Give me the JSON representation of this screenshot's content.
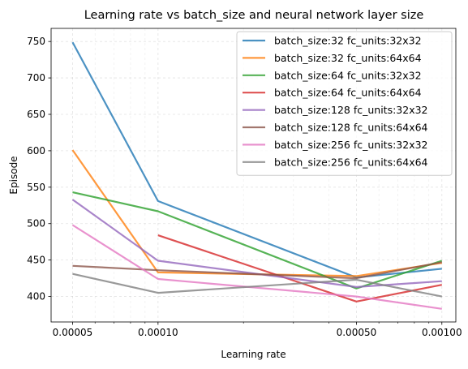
{
  "chart_data": {
    "type": "line",
    "title": "Learning rate vs batch_size and neural network layer size",
    "xlabel": "Learning rate",
    "ylabel": "Episode",
    "xscale": "log",
    "xlim": [
      4.2e-05,
      0.00112
    ],
    "ylim": [
      365,
      768
    ],
    "grid": true,
    "legend_position": "top-right",
    "x_ticks": [
      5e-05,
      0.0001,
      0.0005,
      0.001
    ],
    "x_tick_labels": [
      "0.00005",
      "0.00010",
      "0.00050",
      "0.00100"
    ],
    "y_ticks": [
      400,
      450,
      500,
      550,
      600,
      650,
      700,
      750
    ],
    "y_tick_labels": [
      "400",
      "450",
      "500",
      "550",
      "600",
      "650",
      "700",
      "750"
    ],
    "x": [
      5e-05,
      0.0001,
      0.0005,
      0.001
    ],
    "series": [
      {
        "name": "batch_size:32 fc_units:32x32",
        "color": "#1f77b4",
        "values": [
          749,
          531,
          426,
          438
        ]
      },
      {
        "name": "batch_size:32 fc_units:64x64",
        "color": "#ff7f0e",
        "values": [
          601,
          433,
          428,
          446
        ]
      },
      {
        "name": "batch_size:64 fc_units:32x32",
        "color": "#2ca02c",
        "values": [
          543,
          517,
          411,
          449
        ]
      },
      {
        "name": "batch_size:64 fc_units:64x64",
        "color": "#d62728",
        "values": [
          null,
          484,
          393,
          416
        ]
      },
      {
        "name": "batch_size:128 fc_units:32x32",
        "color": "#9467bd",
        "values": [
          533,
          449,
          413,
          421
        ]
      },
      {
        "name": "batch_size:128 fc_units:64x64",
        "color": "#8c564b",
        "values": [
          442,
          436,
          425,
          447
        ]
      },
      {
        "name": "batch_size:256 fc_units:32x32",
        "color": "#e377c2",
        "values": [
          498,
          424,
          400,
          383
        ]
      },
      {
        "name": "batch_size:256 fc_units:64x64",
        "color": "#7f7f7f",
        "values": [
          431,
          405,
          423,
          400
        ]
      }
    ]
  }
}
